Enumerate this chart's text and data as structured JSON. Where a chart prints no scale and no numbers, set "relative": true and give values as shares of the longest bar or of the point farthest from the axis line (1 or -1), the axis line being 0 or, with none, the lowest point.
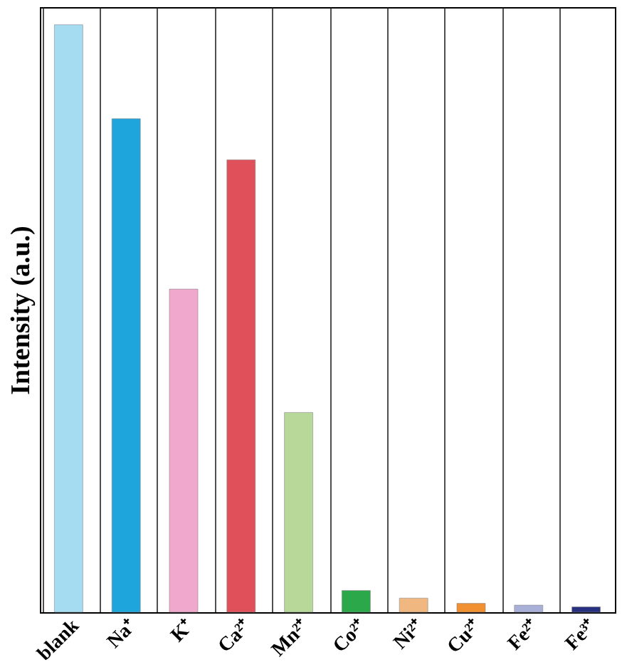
{
  "chart_data": {
    "type": "bar",
    "relative": true,
    "ylabel": "Intensity (a.u.)",
    "grid": "x",
    "categories": [
      "blank",
      "Na⁺",
      "K⁺",
      "Ca²⁺",
      "Mn²⁺",
      "Co²⁺",
      "Ni²⁺",
      "Cu²⁺",
      "Fe²⁺",
      "Fe³⁺"
    ],
    "values": [
      1,
      0.84,
      0.55,
      0.77,
      0.34,
      0.037,
      0.024,
      0.015,
      0.012,
      0.009
    ],
    "colors": [
      "#a6dcf2",
      "#1ea5dc",
      "#f0a8cc",
      "#e0505a",
      "#b8d89a",
      "#2aa84a",
      "#f0b880",
      "#f09030",
      "#a8b0d8",
      "#283080"
    ]
  }
}
